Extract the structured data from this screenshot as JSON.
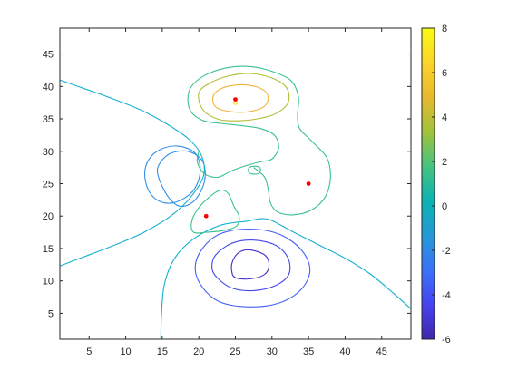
{
  "chart_data": {
    "type": "contour",
    "xlim": [
      1,
      49
    ],
    "ylim": [
      1,
      49
    ],
    "x_ticks": [
      5,
      10,
      15,
      20,
      25,
      30,
      35,
      40,
      45
    ],
    "y_ticks": [
      5,
      10,
      15,
      20,
      25,
      30,
      35,
      40,
      45
    ],
    "colorbar": {
      "range": [
        -6,
        8
      ],
      "ticks": [
        -6,
        -4,
        -2,
        0,
        2,
        4,
        6,
        8
      ],
      "colormap": [
        "#3e26a8",
        "#4743f1",
        "#3a72f8",
        "#2499d7",
        "#0bb3b3",
        "#45c37f",
        "#a1c23b",
        "#e7b92e",
        "#fcd42b",
        "#f9fb15"
      ]
    },
    "contour_levels": [
      {
        "level": -5,
        "color": "#3f2fc4",
        "paths": [
          [
            [
              25,
              10.5
            ],
            [
              27,
              10.3
            ],
            [
              29,
              11
            ],
            [
              29.6,
              12.5
            ],
            [
              29,
              14
            ],
            [
              27,
              14.8
            ],
            [
              25.5,
              14.4
            ],
            [
              24.6,
              13
            ],
            [
              24.5,
              11.5
            ],
            [
              25,
              10.5
            ]
          ]
        ]
      },
      {
        "level": -4,
        "color": "#4249e8",
        "paths": [
          [
            [
              22.5,
              10.5
            ],
            [
              24.5,
              8.9
            ],
            [
              27.5,
              8.5
            ],
            [
              30.5,
              9.3
            ],
            [
              32.3,
              11
            ],
            [
              32.2,
              13.5
            ],
            [
              30.5,
              15.5
            ],
            [
              27.5,
              16.3
            ],
            [
              24.5,
              15.8
            ],
            [
              22.3,
              14
            ],
            [
              21.8,
              12
            ],
            [
              22.5,
              10.5
            ]
          ]
        ]
      },
      {
        "level": -3,
        "color": "#4560f6",
        "paths": [
          [
            [
              20.5,
              9
            ],
            [
              23,
              6.7
            ],
            [
              27,
              6
            ],
            [
              31,
              6.6
            ],
            [
              34,
              8.7
            ],
            [
              35.2,
              11.7
            ],
            [
              34,
              14.8
            ],
            [
              31,
              17.2
            ],
            [
              27,
              18
            ],
            [
              23,
              17.3
            ],
            [
              20.5,
              15
            ],
            [
              19.5,
              12
            ],
            [
              20.5,
              9
            ]
          ]
        ]
      },
      {
        "level": -1,
        "color": "#2f8fe8",
        "paths": [
          [
            [
              14.5,
              26
            ],
            [
              15.8,
              23
            ],
            [
              17.5,
              21.5
            ],
            [
              19.5,
              22.5
            ],
            [
              20.8,
              25.5
            ],
            [
              20.5,
              28.5
            ],
            [
              18.5,
              30
            ],
            [
              16,
              29.6
            ],
            [
              14.5,
              27.8
            ],
            [
              14.5,
              26
            ]
          ],
          [
            [
              13.2,
              28.8
            ],
            [
              12.6,
              26.5
            ],
            [
              13.2,
              23.8
            ],
            [
              14.8,
              22.2
            ],
            [
              17,
              22.2
            ],
            [
              19.3,
              24
            ],
            [
              20.2,
              27
            ],
            [
              19.5,
              29.7
            ],
            [
              17.2,
              30.8
            ],
            [
              14.8,
              30.3
            ],
            [
              13.2,
              28.8
            ]
          ]
        ]
      },
      {
        "level": 0,
        "color": "#12b1d0",
        "paths": [
          [
            [
              1,
              41
            ],
            [
              4,
              39.8
            ],
            [
              8,
              38.2
            ],
            [
              12,
              36.4
            ],
            [
              15.5,
              34.3
            ],
            [
              18.5,
              32
            ],
            [
              20.3,
              29.5
            ],
            [
              20.7,
              26.5
            ],
            [
              19.3,
              23.5
            ],
            [
              16.5,
              20.3
            ],
            [
              12.5,
              17.5
            ],
            [
              8,
              15.3
            ],
            [
              4,
              13.6
            ],
            [
              1,
              12.3
            ]
          ],
          [
            [
              14.8,
              1
            ],
            [
              14.9,
              5
            ],
            [
              15.3,
              9.5
            ],
            [
              16.7,
              13.5
            ],
            [
              19.3,
              16.5
            ],
            [
              23,
              18.6
            ],
            [
              26.5,
              19.2
            ],
            [
              28.5,
              19.6
            ],
            [
              30,
              19.3
            ],
            [
              33,
              17.5
            ],
            [
              36.5,
              15.5
            ],
            [
              40,
              13.5
            ],
            [
              43.5,
              11
            ],
            [
              46.5,
              8.2
            ],
            [
              49,
              5.7
            ]
          ]
        ]
      },
      {
        "level": 2,
        "color": "#38c28e",
        "paths": [
          [
            [
              20,
              30
            ],
            [
              19.8,
              28.3
            ],
            [
              20.8,
              26.5
            ],
            [
              22.6,
              26
            ],
            [
              24.5,
              27
            ],
            [
              26.5,
              27.8
            ],
            [
              28.5,
              28.4
            ],
            [
              30,
              28.8
            ],
            [
              30.9,
              30.5
            ],
            [
              30.4,
              32.4
            ],
            [
              28.5,
              33.5
            ],
            [
              25.5,
              34
            ],
            [
              23,
              34.3
            ],
            [
              20.7,
              34.7
            ],
            [
              19,
              36
            ],
            [
              18.5,
              38
            ],
            [
              19,
              40
            ],
            [
              20.8,
              41.7
            ],
            [
              23.5,
              42.8
            ],
            [
              26.5,
              43.1
            ],
            [
              29.5,
              42.5
            ],
            [
              32.5,
              41
            ],
            [
              33.6,
              38.5
            ],
            [
              33.5,
              35.5
            ],
            [
              33.8,
              33.5
            ],
            [
              35.5,
              31.5
            ],
            [
              37.5,
              29
            ],
            [
              38,
              26
            ],
            [
              37.3,
              23
            ],
            [
              35.5,
              21
            ],
            [
              33,
              20.2
            ],
            [
              30.8,
              20.6
            ],
            [
              29.8,
              22
            ],
            [
              29.5,
              24
            ],
            [
              29,
              26
            ],
            [
              27.5,
              27.5
            ]
          ],
          [
            [
              24.8,
              21.5
            ],
            [
              25.5,
              20
            ],
            [
              25.2,
              18.5
            ],
            [
              23.5,
              17.8
            ],
            [
              21,
              17.5
            ],
            [
              19.3,
              17.5
            ],
            [
              19,
              19
            ],
            [
              19.8,
              21
            ],
            [
              21.5,
              23
            ],
            [
              23,
              24
            ],
            [
              24,
              23.5
            ],
            [
              24.8,
              21.5
            ]
          ],
          [
            [
              26.8,
              26.8
            ],
            [
              26.9,
              27.5
            ],
            [
              27.7,
              27.7
            ],
            [
              28.4,
              27.4
            ],
            [
              28.2,
              26.6
            ],
            [
              27.3,
              26.5
            ],
            [
              26.8,
              26.8
            ]
          ]
        ]
      },
      {
        "level": 4,
        "color": "#b1bd34",
        "paths": [
          [
            [
              20,
              39
            ],
            [
              20.5,
              36.5
            ],
            [
              22.5,
              35
            ],
            [
              25,
              34.7
            ],
            [
              28,
              35
            ],
            [
              30.5,
              35.8
            ],
            [
              32.2,
              37.5
            ],
            [
              32,
              39.8
            ],
            [
              30,
              41.3
            ],
            [
              27,
              42
            ],
            [
              24,
              41.6
            ],
            [
              21.5,
              40.5
            ],
            [
              20,
              39
            ]
          ]
        ]
      },
      {
        "level": 6,
        "color": "#f2b43a",
        "paths": [
          [
            [
              21.9,
              38
            ],
            [
              22.5,
              36.7
            ],
            [
              24.5,
              36.1
            ],
            [
              26.8,
              36.1
            ],
            [
              28.8,
              36.8
            ],
            [
              29.5,
              38.2
            ],
            [
              28.8,
              39.5
            ],
            [
              26.8,
              40.2
            ],
            [
              24.3,
              40.1
            ],
            [
              22.5,
              39.3
            ],
            [
              21.9,
              38
            ]
          ]
        ]
      },
      {
        "level": 7.5,
        "color": "#f7e318",
        "paths": [
          [
            [
              24.7,
              37.5
            ],
            [
              25,
              37.2
            ],
            [
              25.3,
              37.5
            ],
            [
              25,
              37.8
            ],
            [
              24.7,
              37.5
            ]
          ]
        ]
      }
    ],
    "points": [
      {
        "x": 25,
        "y": 38
      },
      {
        "x": 35,
        "y": 25
      },
      {
        "x": 21,
        "y": 20
      }
    ],
    "point_color": "#ff0000"
  }
}
